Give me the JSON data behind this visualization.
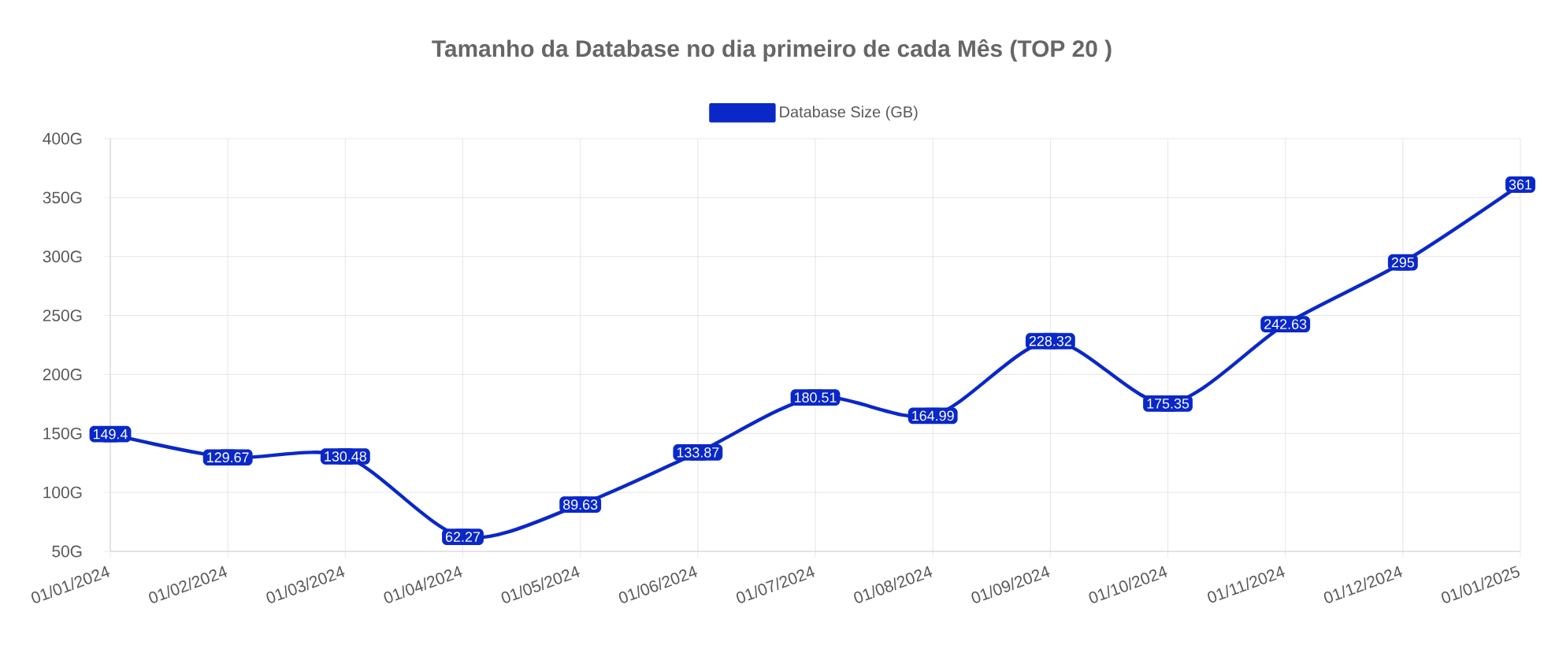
{
  "chart_data": {
    "type": "line",
    "title": "Tamanho da Database no dia primeiro de cada Mês (TOP 20 )",
    "categories": [
      "01/01/2024",
      "01/02/2024",
      "01/03/2024",
      "01/04/2024",
      "01/05/2024",
      "01/06/2024",
      "01/07/2024",
      "01/08/2024",
      "01/09/2024",
      "01/10/2024",
      "01/11/2024",
      "01/12/2024",
      "01/01/2025"
    ],
    "series": [
      {
        "name": "Database Size (GB)",
        "color": "#0a28c8",
        "values": [
          149.4,
          129.67,
          130.48,
          62.27,
          89.63,
          133.87,
          180.51,
          164.99,
          228.32,
          175.35,
          242.63,
          295,
          361
        ]
      }
    ],
    "ylim": [
      50,
      400
    ],
    "yticks": [
      {
        "value": 50,
        "label": "50G"
      },
      {
        "value": 100,
        "label": "100G"
      },
      {
        "value": 150,
        "label": "150G"
      },
      {
        "value": 200,
        "label": "200G"
      },
      {
        "value": 250,
        "label": "250G"
      },
      {
        "value": 300,
        "label": "300G"
      },
      {
        "value": 350,
        "label": "350G"
      },
      {
        "value": 400,
        "label": "400G"
      }
    ],
    "grid": true,
    "marker": "square",
    "legend": "top",
    "data_labels": true
  }
}
